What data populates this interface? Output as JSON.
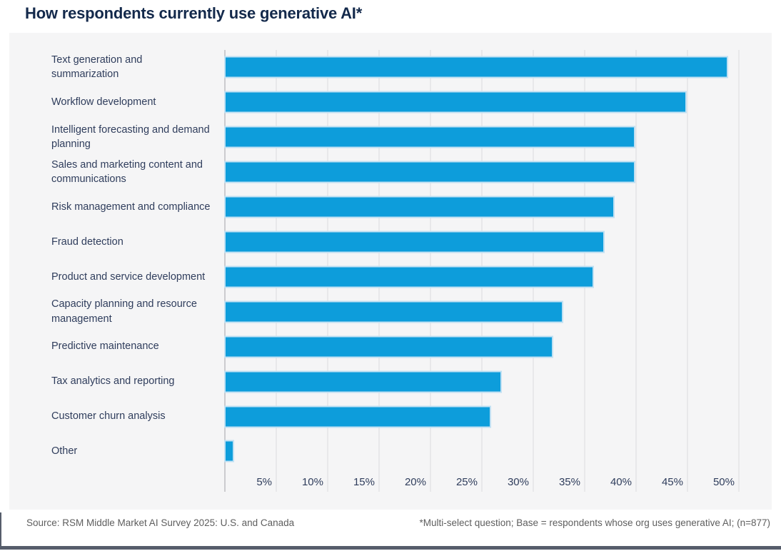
{
  "page": {
    "title": "How respondents currently use generative AI*",
    "footer": {
      "source": "Source: RSM Middle Market AI Survey 2025: U.S. and Canada",
      "note": "*Multi-select question; Base = respondents whose org uses generative AI; (n=877)"
    }
  },
  "colors": {
    "title_text": "#13294b",
    "label_text": "#2f3d5c",
    "bar_fill": "#0d9ddb",
    "bar_edge": "#bfe0f3",
    "panel_bg": "#f5f5f6",
    "gridline": "#e8e8ea",
    "axis_line": "#cbcbcf",
    "footer_text": "#5e5e5e",
    "bottom_bar": "#565d6b"
  },
  "chart_data": {
    "type": "bar",
    "orientation": "horizontal",
    "title": "How respondents currently use generative AI*",
    "xlabel": "",
    "ylabel": "",
    "xlim": [
      0,
      50
    ],
    "grid": "vertical",
    "legend": "none",
    "x_tick_labels": [
      "5%",
      "10%",
      "15%",
      "20%",
      "25%",
      "30%",
      "35%",
      "40%",
      "45%",
      "50%"
    ],
    "x_tick_values": [
      5,
      10,
      15,
      20,
      25,
      30,
      35,
      40,
      45,
      50
    ],
    "categories": [
      "Text generation and summarization",
      "Workflow development",
      "Intelligent forecasting and demand planning",
      "Sales and marketing content and communications",
      "Risk management and compliance",
      "Fraud detection",
      "Product and service development",
      "Capacity planning and resource management",
      "Predictive maintenance",
      "Tax analytics and reporting",
      "Customer churn analysis",
      "Other"
    ],
    "values": [
      49,
      45,
      40,
      40,
      38,
      37,
      36,
      33,
      32,
      27,
      26,
      1
    ],
    "unit": "%"
  }
}
